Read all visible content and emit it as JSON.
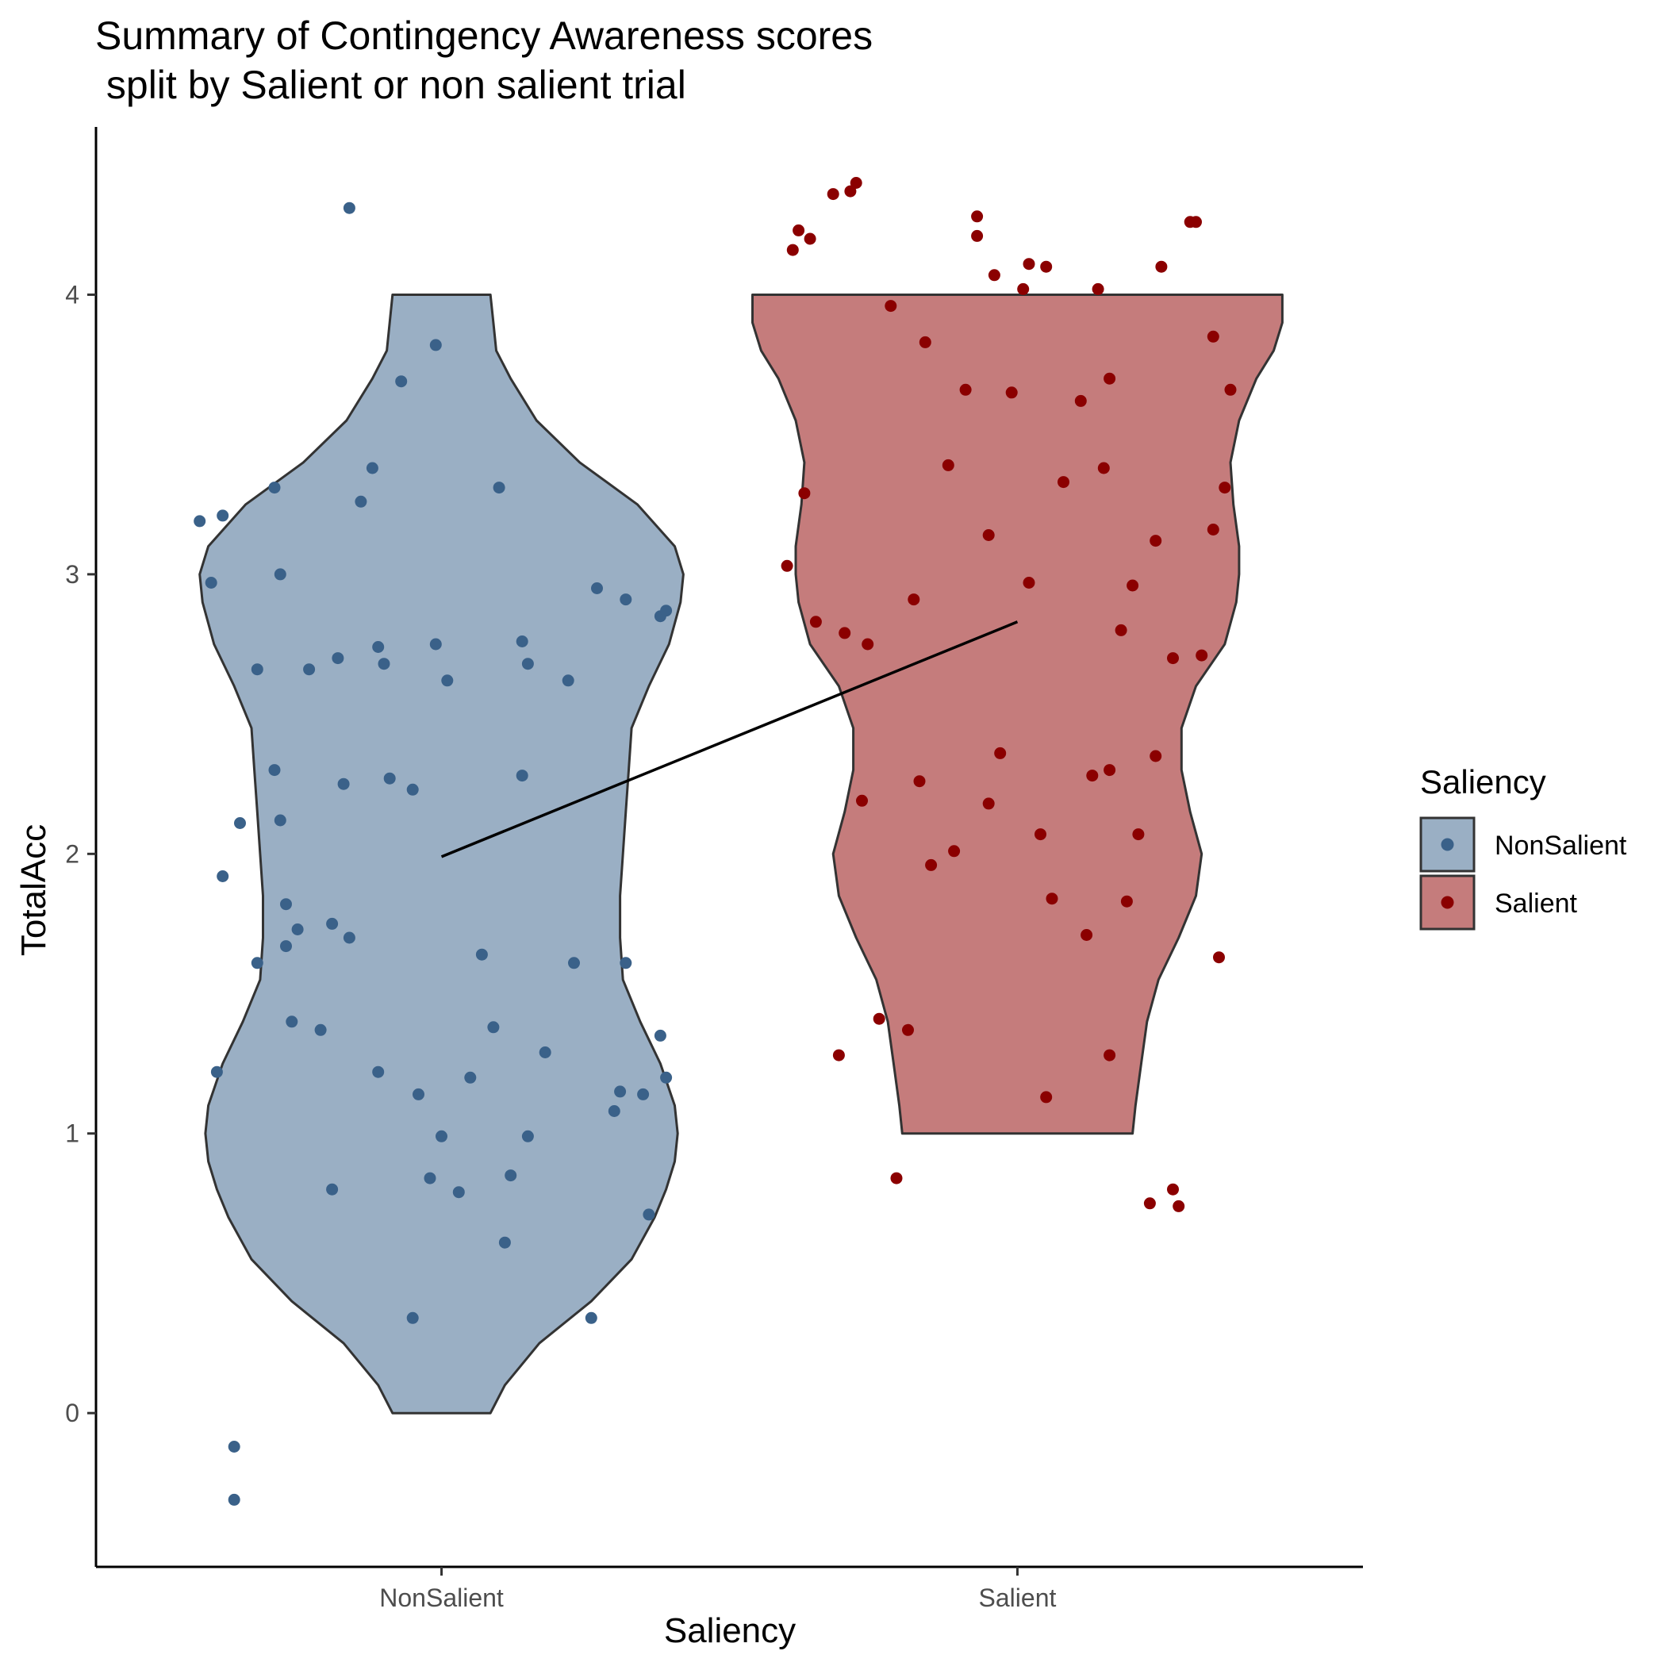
{
  "chart_data": {
    "type": "violin",
    "title_lines": [
      "Summary of Contingency Awareness scores",
      " split by Salient or non salient trial"
    ],
    "xlabel": "Saliency",
    "ylabel": "TotalAcc",
    "ylim": [
      -0.55,
      4.6
    ],
    "yticks": [
      0,
      1,
      2,
      3,
      4
    ],
    "categories": [
      "NonSalient",
      "Salient"
    ],
    "legend": {
      "title": "Saliency",
      "position": "right",
      "entries": [
        {
          "label": "NonSalient",
          "fill": "#9aafc4",
          "point": "#3a6189"
        },
        {
          "label": "Salient",
          "fill": "#c57c7c",
          "point": "#8b0000"
        }
      ]
    },
    "series": [
      {
        "name": "NonSalient",
        "fill_color": "#9aafc4",
        "point_color": "#3a6189",
        "mean": 1.99,
        "violin_range": [
          0,
          4
        ],
        "violin_profile": [
          [
            0,
            0.085
          ],
          [
            0.1,
            0.11
          ],
          [
            0.25,
            0.17
          ],
          [
            0.4,
            0.26
          ],
          [
            0.55,
            0.33
          ],
          [
            0.7,
            0.37
          ],
          [
            0.8,
            0.39
          ],
          [
            0.9,
            0.405
          ],
          [
            1.0,
            0.41
          ],
          [
            1.1,
            0.405
          ],
          [
            1.25,
            0.38
          ],
          [
            1.4,
            0.345
          ],
          [
            1.55,
            0.315
          ],
          [
            1.7,
            0.31
          ],
          [
            1.85,
            0.31
          ],
          [
            2.0,
            0.315
          ],
          [
            2.15,
            0.32
          ],
          [
            2.3,
            0.325
          ],
          [
            2.45,
            0.33
          ],
          [
            2.6,
            0.36
          ],
          [
            2.75,
            0.395
          ],
          [
            2.9,
            0.415
          ],
          [
            3.0,
            0.42
          ],
          [
            3.1,
            0.405
          ],
          [
            3.25,
            0.34
          ],
          [
            3.4,
            0.24
          ],
          [
            3.55,
            0.165
          ],
          [
            3.7,
            0.12
          ],
          [
            3.8,
            0.095
          ],
          [
            3.9,
            0.09
          ],
          [
            4.0,
            0.085
          ]
        ],
        "points": [
          [
            -0.42,
            3.19
          ],
          [
            -0.4,
            2.97
          ],
          [
            -0.38,
            3.21
          ],
          [
            -0.39,
            1.22
          ],
          [
            -0.38,
            1.92
          ],
          [
            -0.36,
            -0.12
          ],
          [
            -0.36,
            -0.31
          ],
          [
            -0.35,
            2.11
          ],
          [
            -0.32,
            2.66
          ],
          [
            -0.32,
            1.61
          ],
          [
            -0.29,
            2.3
          ],
          [
            -0.29,
            3.31
          ],
          [
            -0.28,
            3.0
          ],
          [
            -0.28,
            2.12
          ],
          [
            -0.27,
            1.82
          ],
          [
            -0.27,
            1.67
          ],
          [
            -0.26,
            1.4
          ],
          [
            -0.25,
            1.73
          ],
          [
            -0.23,
            2.66
          ],
          [
            -0.21,
            1.37
          ],
          [
            -0.19,
            1.75
          ],
          [
            -0.19,
            0.8
          ],
          [
            -0.18,
            2.7
          ],
          [
            -0.17,
            2.25
          ],
          [
            -0.16,
            1.7
          ],
          [
            -0.16,
            4.31
          ],
          [
            -0.14,
            3.26
          ],
          [
            -0.12,
            3.38
          ],
          [
            -0.11,
            2.74
          ],
          [
            -0.11,
            1.22
          ],
          [
            -0.1,
            2.68
          ],
          [
            -0.09,
            2.27
          ],
          [
            -0.07,
            3.69
          ],
          [
            -0.05,
            2.23
          ],
          [
            -0.05,
            0.34
          ],
          [
            -0.04,
            1.14
          ],
          [
            -0.02,
            0.84
          ],
          [
            -0.01,
            3.82
          ],
          [
            -0.01,
            2.75
          ],
          [
            0.0,
            0.99
          ],
          [
            0.01,
            2.62
          ],
          [
            0.03,
            0.79
          ],
          [
            0.05,
            1.2
          ],
          [
            0.07,
            1.64
          ],
          [
            0.09,
            1.38
          ],
          [
            0.1,
            3.31
          ],
          [
            0.11,
            0.61
          ],
          [
            0.12,
            0.85
          ],
          [
            0.14,
            2.28
          ],
          [
            0.14,
            2.76
          ],
          [
            0.15,
            2.68
          ],
          [
            0.15,
            0.99
          ],
          [
            0.18,
            1.29
          ],
          [
            0.22,
            2.62
          ],
          [
            0.23,
            1.61
          ],
          [
            0.26,
            0.34
          ],
          [
            0.27,
            2.95
          ],
          [
            0.3,
            1.08
          ],
          [
            0.31,
            1.15
          ],
          [
            0.32,
            2.91
          ],
          [
            0.32,
            1.61
          ],
          [
            0.35,
            1.14
          ],
          [
            0.36,
            0.71
          ],
          [
            0.38,
            2.85
          ],
          [
            0.38,
            1.35
          ],
          [
            0.39,
            2.87
          ],
          [
            0.39,
            1.2
          ]
        ]
      },
      {
        "name": "Salient",
        "fill_color": "#c57c7c",
        "point_color": "#8b0000",
        "mean": 2.83,
        "violin_range": [
          1,
          4
        ],
        "violin_profile": [
          [
            1.0,
            0.2
          ],
          [
            1.1,
            0.205
          ],
          [
            1.25,
            0.215
          ],
          [
            1.4,
            0.225
          ],
          [
            1.55,
            0.245
          ],
          [
            1.7,
            0.28
          ],
          [
            1.85,
            0.31
          ],
          [
            2.0,
            0.32
          ],
          [
            2.15,
            0.3
          ],
          [
            2.3,
            0.285
          ],
          [
            2.45,
            0.285
          ],
          [
            2.6,
            0.31
          ],
          [
            2.75,
            0.36
          ],
          [
            2.9,
            0.38
          ],
          [
            3.0,
            0.385
          ],
          [
            3.1,
            0.385
          ],
          [
            3.25,
            0.375
          ],
          [
            3.4,
            0.37
          ],
          [
            3.55,
            0.385
          ],
          [
            3.7,
            0.415
          ],
          [
            3.8,
            0.445
          ],
          [
            3.9,
            0.46
          ],
          [
            4.0,
            0.46
          ]
        ],
        "points": [
          [
            -0.4,
            3.03
          ],
          [
            -0.39,
            4.16
          ],
          [
            -0.38,
            4.23
          ],
          [
            -0.37,
            3.29
          ],
          [
            -0.36,
            4.2
          ],
          [
            -0.35,
            2.83
          ],
          [
            -0.32,
            4.36
          ],
          [
            -0.31,
            1.28
          ],
          [
            -0.3,
            2.79
          ],
          [
            -0.29,
            4.37
          ],
          [
            -0.28,
            4.4
          ],
          [
            -0.27,
            2.19
          ],
          [
            -0.26,
            2.75
          ],
          [
            -0.24,
            1.41
          ],
          [
            -0.22,
            3.96
          ],
          [
            -0.21,
            0.84
          ],
          [
            -0.19,
            1.37
          ],
          [
            -0.18,
            2.91
          ],
          [
            -0.17,
            2.26
          ],
          [
            -0.16,
            3.83
          ],
          [
            -0.15,
            1.96
          ],
          [
            -0.12,
            3.39
          ],
          [
            -0.11,
            2.01
          ],
          [
            -0.09,
            3.66
          ],
          [
            -0.07,
            4.28
          ],
          [
            -0.07,
            4.21
          ],
          [
            -0.05,
            3.14
          ],
          [
            -0.05,
            2.18
          ],
          [
            -0.04,
            4.07
          ],
          [
            -0.03,
            2.36
          ],
          [
            -0.01,
            3.65
          ],
          [
            0.01,
            4.02
          ],
          [
            0.02,
            4.11
          ],
          [
            0.02,
            2.97
          ],
          [
            0.04,
            2.07
          ],
          [
            0.05,
            4.1
          ],
          [
            0.05,
            1.13
          ],
          [
            0.06,
            1.84
          ],
          [
            0.08,
            3.33
          ],
          [
            0.11,
            3.62
          ],
          [
            0.12,
            1.71
          ],
          [
            0.13,
            2.28
          ],
          [
            0.14,
            4.02
          ],
          [
            0.15,
            3.38
          ],
          [
            0.16,
            3.7
          ],
          [
            0.16,
            2.3
          ],
          [
            0.16,
            1.28
          ],
          [
            0.18,
            2.8
          ],
          [
            0.19,
            1.83
          ],
          [
            0.2,
            2.96
          ],
          [
            0.21,
            2.07
          ],
          [
            0.23,
            0.75
          ],
          [
            0.24,
            3.12
          ],
          [
            0.24,
            2.35
          ],
          [
            0.25,
            4.1
          ],
          [
            0.27,
            2.7
          ],
          [
            0.27,
            0.8
          ],
          [
            0.28,
            0.74
          ],
          [
            0.3,
            4.26
          ],
          [
            0.31,
            4.26
          ],
          [
            0.32,
            2.71
          ],
          [
            0.34,
            3.85
          ],
          [
            0.34,
            3.16
          ],
          [
            0.35,
            1.63
          ],
          [
            0.36,
            3.31
          ],
          [
            0.37,
            3.66
          ]
        ]
      }
    ]
  }
}
